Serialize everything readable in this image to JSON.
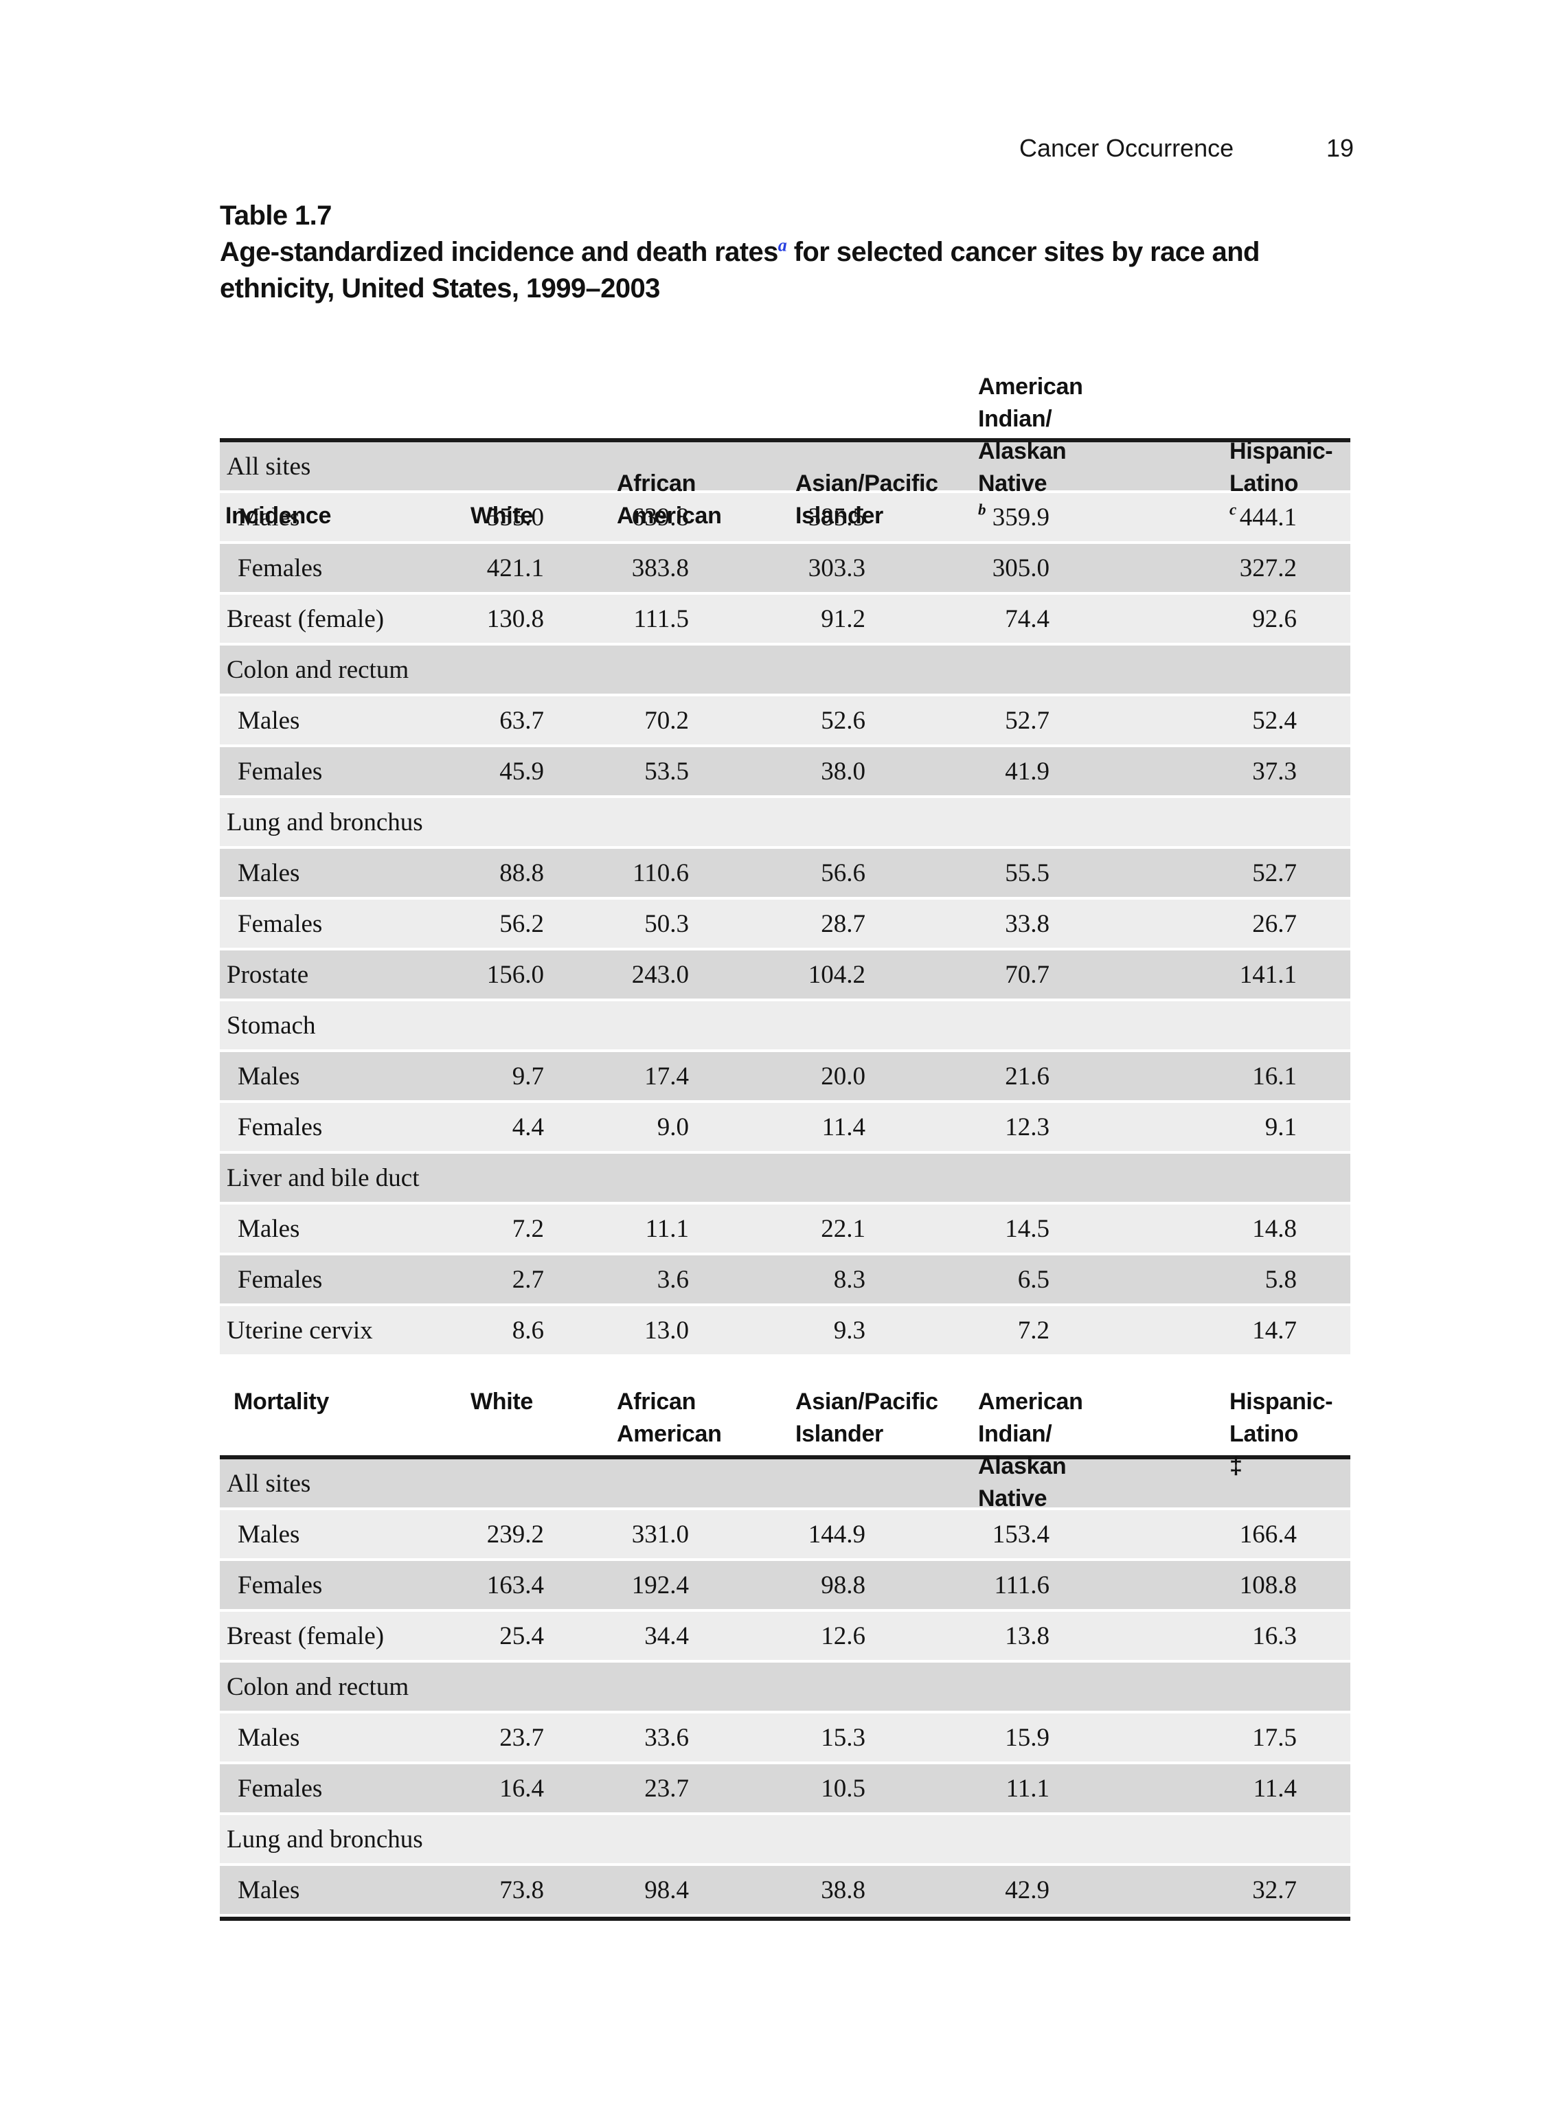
{
  "running_head": {
    "section_title": "Cancer Occurrence",
    "page_number": "19"
  },
  "title": {
    "line1": "Table 1.7",
    "line2_text": "Age-standardized incidence and death rates",
    "line2_sup": "a",
    "line2_rest": " for selected cancer sites by race and",
    "line3": "ethnicity, United States, 1999–2003"
  },
  "colors": {
    "band_dark": "#d8d8d8",
    "band_light": "#ededed",
    "rule_black": "#1a1a1a",
    "title_superscript_blue": "#2840e0"
  },
  "table": {
    "incidence": {
      "header": {
        "label": "Incidence",
        "white": "White",
        "african_1": "African",
        "african_2": "American",
        "api_1": "Asian/Pacific",
        "api_2": "Islander",
        "aian_1": "American Indian/",
        "aian_2": "Alaskan Native",
        "aian_sup": "b",
        "hl_1": "Hispanic-",
        "hl_2": "Latino",
        "hl_sup": "c"
      },
      "rows": [
        {
          "label": "All sites",
          "category": true
        },
        {
          "label": "Males",
          "indent": true,
          "values": [
            "555.0",
            "639.8",
            "385.5",
            "359.9",
            "444.1"
          ]
        },
        {
          "label": "Females",
          "indent": true,
          "values": [
            "421.1",
            "383.8",
            "303.3",
            "305.0",
            "327.2"
          ]
        },
        {
          "label": "Breast (female)",
          "values": [
            "130.8",
            "111.5",
            "91.2",
            "74.4",
            "92.6"
          ]
        },
        {
          "label": "Colon and rectum",
          "category": true
        },
        {
          "label": "Males",
          "indent": true,
          "values": [
            "63.7",
            "70.2",
            "52.6",
            "52.7",
            "52.4"
          ]
        },
        {
          "label": "Females",
          "indent": true,
          "values": [
            "45.9",
            "53.5",
            "38.0",
            "41.9",
            "37.3"
          ]
        },
        {
          "label": "Lung and bronchus",
          "category": true
        },
        {
          "label": "Males",
          "indent": true,
          "values": [
            "88.8",
            "110.6",
            "56.6",
            "55.5",
            "52.7"
          ]
        },
        {
          "label": "Females",
          "indent": true,
          "values": [
            "56.2",
            "50.3",
            "28.7",
            "33.8",
            "26.7"
          ]
        },
        {
          "label": "Prostate",
          "values": [
            "156.0",
            "243.0",
            "104.2",
            "70.7",
            "141.1"
          ]
        },
        {
          "label": "Stomach",
          "category": true
        },
        {
          "label": "Males",
          "indent": true,
          "values": [
            "9.7",
            "17.4",
            "20.0",
            "21.6",
            "16.1"
          ]
        },
        {
          "label": "Females",
          "indent": true,
          "values": [
            "4.4",
            "9.0",
            "11.4",
            "12.3",
            "9.1"
          ]
        },
        {
          "label": "Liver and bile duct",
          "category": true
        },
        {
          "label": "Males",
          "indent": true,
          "values": [
            "7.2",
            "11.1",
            "22.1",
            "14.5",
            "14.8"
          ]
        },
        {
          "label": "Females",
          "indent": true,
          "values": [
            "2.7",
            "3.6",
            "8.3",
            "6.5",
            "5.8"
          ]
        },
        {
          "label": "Uterine cervix",
          "values": [
            "8.6",
            "13.0",
            "9.3",
            "7.2",
            "14.7"
          ]
        }
      ]
    },
    "mortality": {
      "header": {
        "label": "Mortality",
        "white": "White",
        "african_1": "African",
        "african_2": "American",
        "api_1": "Asian/Pacific",
        "api_2": "Islander",
        "aian_1": "American Indian/",
        "aian_2": "Alaskan Native",
        "hl_1": "Hispanic-",
        "hl_2": "Latino ‡"
      },
      "rows": [
        {
          "label": "All sites",
          "category": true
        },
        {
          "label": "Males",
          "indent": true,
          "values": [
            "239.2",
            "331.0",
            "144.9",
            "153.4",
            "166.4"
          ]
        },
        {
          "label": "Females",
          "indent": true,
          "values": [
            "163.4",
            "192.4",
            "98.8",
            "111.6",
            "108.8"
          ]
        },
        {
          "label": "Breast (female)",
          "values": [
            "25.4",
            "34.4",
            "12.6",
            "13.8",
            "16.3"
          ]
        },
        {
          "label": "Colon and rectum",
          "category": true
        },
        {
          "label": "Males",
          "indent": true,
          "values": [
            "23.7",
            "33.6",
            "15.3",
            "15.9",
            "17.5"
          ]
        },
        {
          "label": "Females",
          "indent": true,
          "values": [
            "16.4",
            "23.7",
            "10.5",
            "11.1",
            "11.4"
          ]
        },
        {
          "label": "Lung and bronchus",
          "category": true
        },
        {
          "label": "Males",
          "indent": true,
          "values": [
            "73.8",
            "98.4",
            "38.8",
            "42.9",
            "32.7"
          ]
        }
      ]
    }
  }
}
